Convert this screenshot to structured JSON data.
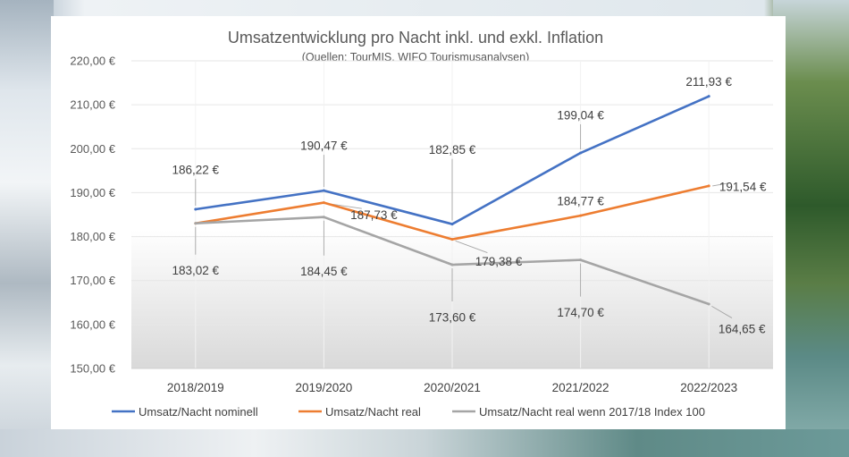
{
  "chart_data": {
    "type": "line",
    "title": "Umsatzentwicklung  pro Nacht inkl. und exkl. Inflation",
    "subtitle": "(Quellen: TourMIS, WIFO Tourismusanalysen)",
    "categories": [
      "2018/2019",
      "2019/2020",
      "2020/2021",
      "2021/2022",
      "2022/2023"
    ],
    "ylim": [
      150,
      220
    ],
    "yticks": [
      "150,00 €",
      "160,00 €",
      "170,00 €",
      "180,00 €",
      "190,00 €",
      "200,00 €",
      "210,00 €",
      "220,00 €"
    ],
    "legend_position": "bottom",
    "series": [
      {
        "name": "Umsatz/Nacht nominell",
        "color": "#4472C4",
        "values": [
          186.22,
          190.47,
          182.85,
          199.04,
          211.93
        ],
        "labels": [
          "186,22 €",
          "190,47 €",
          "182,85 €",
          "199,04 €",
          "211,93 €"
        ]
      },
      {
        "name": "Umsatz/Nacht real",
        "color": "#ED7D31",
        "values": [
          183.02,
          187.73,
          179.38,
          184.77,
          191.54
        ],
        "labels": [
          "183,02 €",
          "187,73 €",
          "179,38 €",
          "184,77 €",
          "191,54 €"
        ]
      },
      {
        "name": "Umsatz/Nacht real wenn 2017/18 Index 100",
        "color": "#A5A5A5",
        "values": [
          183.02,
          184.45,
          173.6,
          174.7,
          164.65
        ],
        "labels": [
          "",
          "184,45 €",
          "173,60 €",
          "174,70 €",
          "164,65 €"
        ]
      }
    ]
  }
}
